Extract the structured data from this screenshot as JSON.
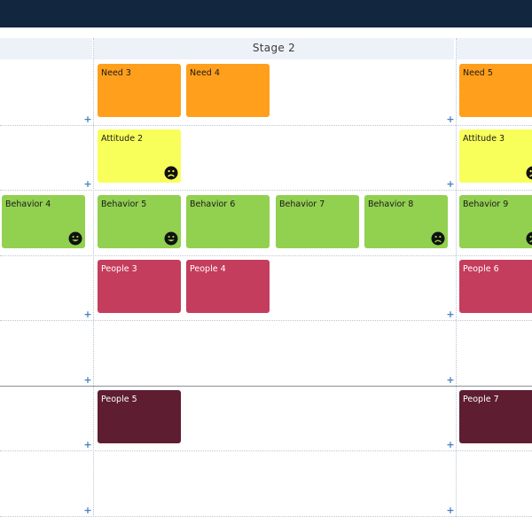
{
  "stages": [
    {
      "label": ""
    },
    {
      "label": "Stage 2"
    },
    {
      "label": ""
    }
  ],
  "cards": {
    "need_3": "Need 3",
    "need_4": "Need 4",
    "need_5": "Need 5",
    "attitude_2": "Attitude 2",
    "attitude_3": "Attitude 3",
    "behavior_4": "Behavior 4",
    "behavior_5": "Behavior 5",
    "behavior_6": "Behavior 6",
    "behavior_7": "Behavior 7",
    "behavior_8": "Behavior 8",
    "behavior_9": "Behavior 9",
    "people_3": "People 3",
    "people_4": "People 4",
    "people_5": "People 5",
    "people_6": "People 6",
    "people_7": "People 7"
  },
  "add_glyph": "+",
  "colors": {
    "topbar": "#12263f",
    "stage_header": "#edf2f9",
    "need": "#ff9f1c",
    "attitude": "#f8ff5a",
    "behavior": "#92d050",
    "people": "#c53d5c",
    "people_dark": "#5e1d31",
    "add_button": "#4a7fc1"
  },
  "icons": {
    "happy": "smiley-face-icon",
    "sad": "frown-face-icon"
  }
}
